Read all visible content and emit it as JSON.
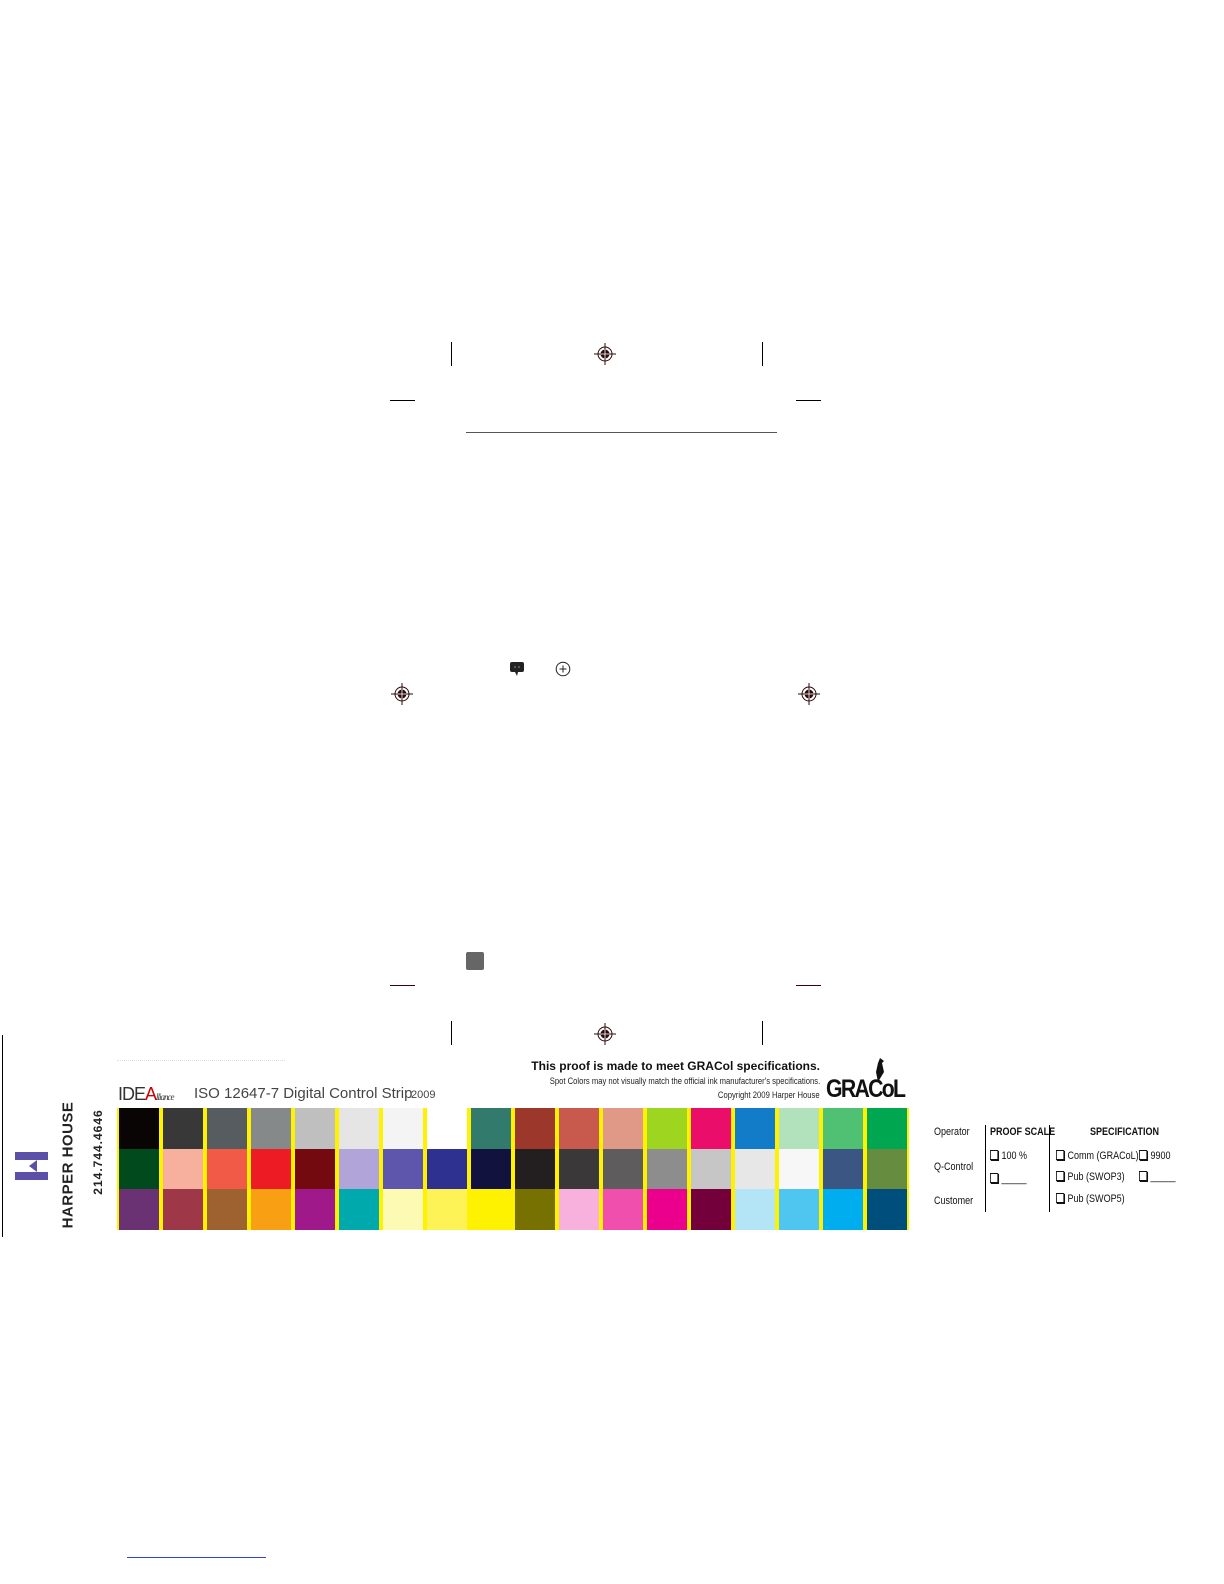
{
  "strip": {
    "title": "ISO 12647-7 Digital Control Strip",
    "year": "2009",
    "logo_text": "IDEAlliance",
    "rows": [
      [
        "#0a0505",
        "#383838",
        "#575c61",
        "#858989",
        "#bfbfbf",
        "#e5e5e5",
        "#f4f4f4",
        "#ffffff",
        "#327a6c",
        "#9b382b",
        "#c75a4d",
        "#e09986",
        "#9ed520",
        "#eb0d6a",
        "#137cc9",
        "#b2e2bc",
        "#50c072",
        "#00a650"
      ],
      [
        "#004a1e",
        "#f7b09e",
        "#f05a47",
        "#ed1c24",
        "#730a10",
        "#b1a4d8",
        "#5e55ad",
        "#2e3190",
        "#12123f",
        "#231f20",
        "#3a3839",
        "#5f5c5d",
        "#8e8d8d",
        "#c6c6c6",
        "#e7e7e7",
        "#f7f7f7",
        "#3b5683",
        "#668c3f"
      ],
      [
        "#6a3273",
        "#9e3747",
        "#9d622f",
        "#f89f14",
        "#a0198b",
        "#00a9ac",
        "#fdfab4",
        "#fdf357",
        "#fef200",
        "#767100",
        "#f8b0dc",
        "#f04fae",
        "#ea008c",
        "#73003a",
        "#b3e5f7",
        "#4ec6f0",
        "#00aeef",
        "#004e7b"
      ]
    ]
  },
  "brand": {
    "company": "HARPER HOUSE",
    "phone": "214.744.4646",
    "color": "#5b4fa8"
  },
  "notice": {
    "headline": "This proof is made to meet GRACol specifications.",
    "line2": "Spot Colors may not visually match the official ink manufacturer's specifications.",
    "line3": "Copyright 2009 Harper House",
    "logo_text": "GRACoL"
  },
  "signoff": {
    "roles": [
      "Operator",
      "Q-Control",
      "Customer"
    ],
    "proof_scale_header": "PROOF SCALE",
    "proof_scale_options": [
      "100 %",
      "_____"
    ],
    "specification_header": "SPECIFICATION",
    "specification_options": [
      "Comm (GRACoL)",
      "Pub (SWOP3)",
      "Pub (SWOP5)",
      "9900",
      "_____"
    ]
  }
}
